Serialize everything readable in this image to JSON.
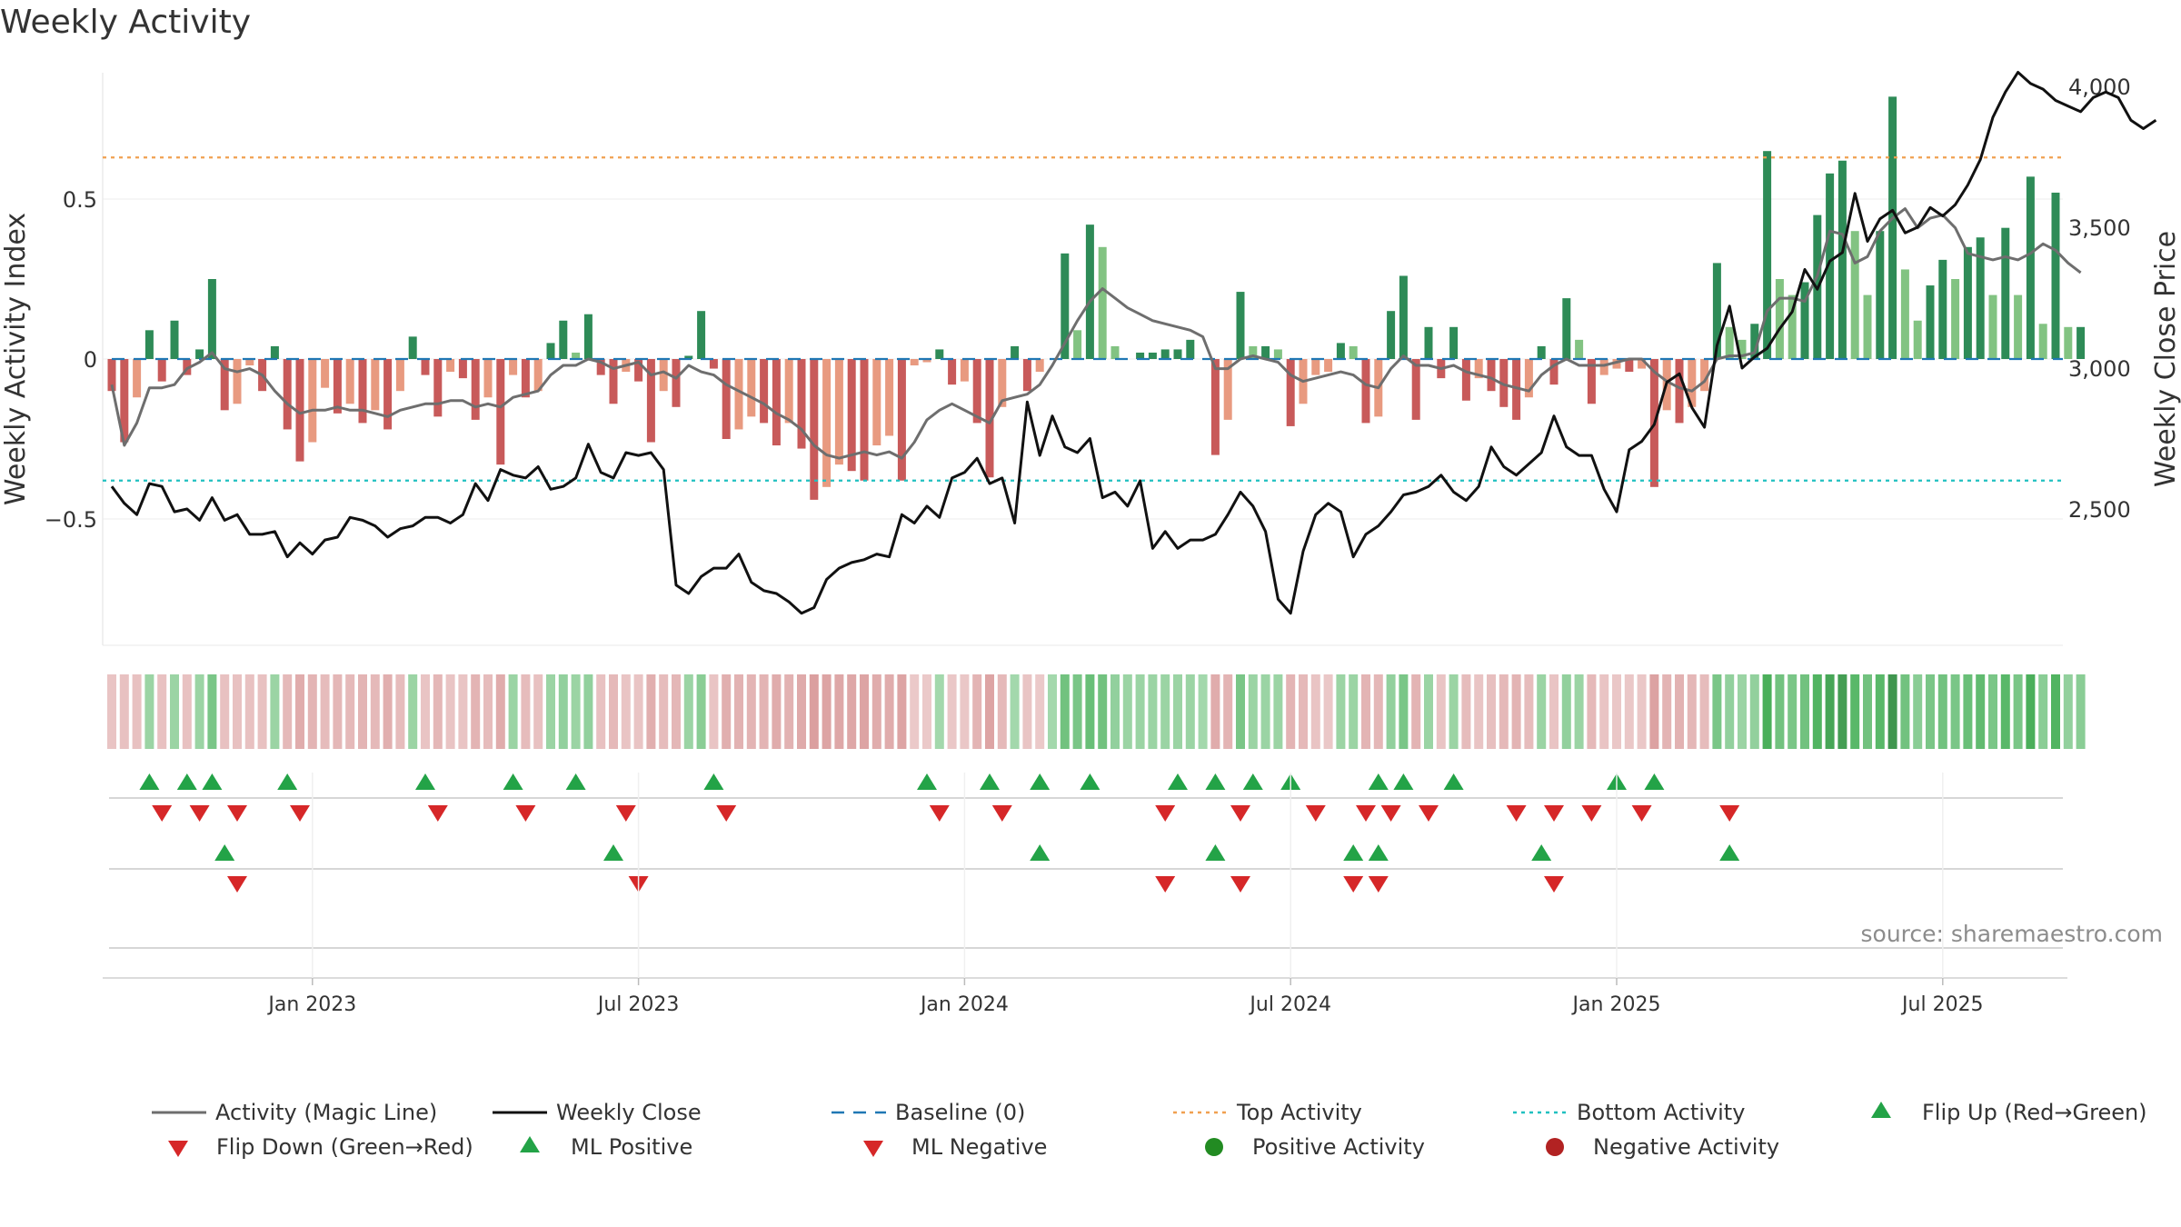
{
  "title": "Weekly Activity",
  "source": "source: sharemaestro.com",
  "colors": {
    "strong_green": "#2e8b57",
    "light_green": "#82c382",
    "strong_red": "#c85a5a",
    "light_red": "#e89a80",
    "magic": "#6e6e6e",
    "close": "#111111",
    "baseline": "#1f77b4",
    "top": "#f0a050",
    "bottom": "#20c0c0",
    "tri_up": "#23a347",
    "tri_down": "#d62728",
    "pos": "#228b22",
    "neg": "#b22222"
  },
  "chart_data": {
    "type": "bar",
    "title": "Weekly Activity",
    "ylabel": "Weekly Activity Index",
    "y2label": "Weekly Close Price",
    "ylim": [
      -0.9,
      0.9
    ],
    "y2lim": [
      2000,
      4100
    ],
    "yticks": [
      0.5,
      0,
      -0.5
    ],
    "ytick_labels": [
      "0.5",
      "0",
      "−0.5"
    ],
    "y2ticks": [
      4000,
      3500,
      3000,
      2500
    ],
    "y2tick_labels": [
      "4,000",
      "3,500",
      "3,000",
      "2,500"
    ],
    "top_activity": 0.63,
    "bottom_activity": -0.38,
    "baseline": 0,
    "x_ticks": [
      {
        "week": 16,
        "label": "Jan 2023"
      },
      {
        "week": 42,
        "label": "Jul 2023"
      },
      {
        "week": 68,
        "label": "Jan 2024"
      },
      {
        "week": 94,
        "label": "Jul 2024"
      },
      {
        "week": 120,
        "label": "Jan 2025"
      },
      {
        "week": 146,
        "label": "Jul 2025"
      }
    ],
    "activity": [
      -0.1,
      -0.26,
      -0.12,
      0.09,
      -0.07,
      0.12,
      -0.05,
      0.03,
      0.25,
      -0.16,
      -0.14,
      -0.02,
      -0.1,
      0.04,
      -0.22,
      -0.32,
      -0.26,
      -0.09,
      -0.17,
      -0.14,
      -0.2,
      -0.16,
      -0.22,
      -0.1,
      0.07,
      -0.05,
      -0.18,
      -0.04,
      -0.06,
      -0.19,
      -0.12,
      -0.33,
      -0.05,
      -0.12,
      -0.1,
      0.05,
      0.12,
      0.02,
      0.14,
      -0.05,
      -0.14,
      -0.04,
      -0.07,
      -0.26,
      -0.1,
      -0.15,
      0.01,
      0.15,
      -0.03,
      -0.25,
      -0.22,
      -0.18,
      -0.2,
      -0.27,
      -0.2,
      -0.28,
      -0.44,
      -0.4,
      -0.33,
      -0.35,
      -0.38,
      -0.27,
      -0.24,
      -0.38,
      -0.02,
      -0.01,
      0.03,
      -0.08,
      -0.07,
      -0.2,
      -0.37,
      -0.15,
      0.04,
      -0.1,
      -0.04,
      0.0,
      0.33,
      0.09,
      0.42,
      0.35,
      0.04,
      0.0,
      0.02,
      0.02,
      0.03,
      0.03,
      0.06,
      0.0,
      -0.3,
      -0.19,
      0.21,
      0.04,
      0.04,
      0.03,
      -0.21,
      -0.14,
      -0.05,
      -0.04,
      0.05,
      0.04,
      -0.2,
      -0.18,
      0.15,
      0.26,
      -0.19,
      0.1,
      -0.06,
      0.1,
      -0.13,
      -0.06,
      -0.1,
      -0.15,
      -0.19,
      -0.12,
      0.04,
      -0.08,
      0.19,
      0.06,
      -0.14,
      -0.05,
      -0.03,
      -0.04,
      -0.03,
      -0.4,
      -0.16,
      -0.2,
      -0.15,
      -0.1,
      0.3,
      0.1,
      0.06,
      0.11,
      0.65,
      0.25,
      0.2,
      0.24,
      0.45,
      0.58,
      0.62,
      0.4,
      0.2,
      0.4,
      0.82,
      0.28,
      0.12,
      0.23,
      0.31,
      0.25,
      0.35,
      0.38,
      0.2,
      0.41,
      0.2,
      0.57,
      0.11,
      0.52,
      0.1,
      0.1
    ],
    "magic": [
      -0.08,
      -0.27,
      -0.2,
      -0.09,
      -0.09,
      -0.08,
      -0.03,
      -0.01,
      0.02,
      -0.03,
      -0.04,
      -0.03,
      -0.05,
      -0.1,
      -0.14,
      -0.17,
      -0.16,
      -0.16,
      -0.15,
      -0.16,
      -0.16,
      -0.17,
      -0.18,
      -0.16,
      -0.15,
      -0.14,
      -0.14,
      -0.13,
      -0.13,
      -0.15,
      -0.14,
      -0.15,
      -0.12,
      -0.11,
      -0.1,
      -0.05,
      -0.02,
      -0.02,
      0.0,
      -0.01,
      -0.03,
      -0.02,
      -0.01,
      -0.05,
      -0.04,
      -0.06,
      -0.02,
      -0.04,
      -0.05,
      -0.08,
      -0.1,
      -0.12,
      -0.14,
      -0.17,
      -0.19,
      -0.22,
      -0.27,
      -0.3,
      -0.31,
      -0.3,
      -0.29,
      -0.3,
      -0.29,
      -0.31,
      -0.26,
      -0.19,
      -0.16,
      -0.14,
      -0.16,
      -0.18,
      -0.2,
      -0.13,
      -0.12,
      -0.11,
      -0.08,
      -0.02,
      0.05,
      0.12,
      0.18,
      0.22,
      0.19,
      0.16,
      0.14,
      0.12,
      0.11,
      0.1,
      0.09,
      0.07,
      -0.03,
      -0.03,
      0.0,
      0.01,
      0.0,
      -0.01,
      -0.05,
      -0.07,
      -0.06,
      -0.05,
      -0.04,
      -0.05,
      -0.08,
      -0.09,
      -0.03,
      0.01,
      -0.02,
      -0.02,
      -0.03,
      -0.02,
      -0.04,
      -0.05,
      -0.06,
      -0.08,
      -0.09,
      -0.1,
      -0.05,
      -0.02,
      0.0,
      -0.02,
      -0.02,
      -0.02,
      -0.01,
      0.0,
      0.0,
      -0.04,
      -0.07,
      -0.09,
      -0.1,
      -0.07,
      0.0,
      0.01,
      0.01,
      0.02,
      0.15,
      0.19,
      0.19,
      0.18,
      0.26,
      0.4,
      0.39,
      0.3,
      0.32,
      0.4,
      0.44,
      0.47,
      0.41,
      0.44,
      0.45,
      0.41,
      0.33,
      0.32,
      0.31,
      0.32,
      0.31,
      0.33,
      0.36,
      0.34,
      0.3,
      0.27
    ],
    "close": [
      2580,
      2520,
      2480,
      2590,
      2580,
      2490,
      2500,
      2460,
      2540,
      2460,
      2480,
      2410,
      2410,
      2420,
      2330,
      2380,
      2340,
      2390,
      2400,
      2470,
      2460,
      2440,
      2400,
      2430,
      2440,
      2470,
      2470,
      2450,
      2480,
      2590,
      2530,
      2640,
      2620,
      2610,
      2650,
      2570,
      2580,
      2610,
      2730,
      2630,
      2610,
      2700,
      2690,
      2700,
      2640,
      2230,
      2200,
      2260,
      2290,
      2290,
      2340,
      2240,
      2210,
      2200,
      2170,
      2130,
      2150,
      2250,
      2290,
      2310,
      2320,
      2340,
      2330,
      2480,
      2450,
      2510,
      2470,
      2610,
      2630,
      2680,
      2590,
      2610,
      2450,
      2880,
      2690,
      2830,
      2720,
      2700,
      2750,
      2540,
      2560,
      2510,
      2600,
      2360,
      2420,
      2360,
      2390,
      2390,
      2410,
      2480,
      2560,
      2510,
      2420,
      2180,
      2130,
      2350,
      2480,
      2520,
      2490,
      2330,
      2410,
      2440,
      2490,
      2550,
      2560,
      2580,
      2620,
      2560,
      2530,
      2580,
      2720,
      2650,
      2620,
      2660,
      2700,
      2830,
      2720,
      2690,
      2690,
      2570,
      2490,
      2710,
      2740,
      2800,
      2950,
      2980,
      2860,
      2790,
      3080,
      3220,
      3000,
      3040,
      3070,
      3140,
      3200,
      3350,
      3280,
      3380,
      3410,
      3620,
      3450,
      3530,
      3560,
      3480,
      3500,
      3570,
      3540,
      3580,
      3650,
      3740,
      3890,
      3980,
      4050,
      4010,
      3990,
      3950,
      3930,
      3910,
      3960,
      3980,
      3960,
      3880,
      3850,
      3880
    ]
  },
  "heatmap": [
    -0.22,
    -0.24,
    -0.24,
    0.35,
    -0.24,
    0.35,
    -0.24,
    0.35,
    0.55,
    -0.24,
    -0.24,
    -0.24,
    -0.24,
    0.35,
    -0.3,
    -0.4,
    -0.34,
    -0.28,
    -0.32,
    -0.3,
    -0.34,
    -0.3,
    -0.38,
    -0.28,
    0.35,
    -0.22,
    -0.32,
    -0.22,
    -0.22,
    -0.34,
    -0.28,
    -0.4,
    0.35,
    -0.28,
    -0.24,
    0.35,
    0.4,
    0.35,
    0.4,
    -0.24,
    -0.3,
    -0.22,
    -0.22,
    -0.38,
    -0.28,
    -0.32,
    0.35,
    0.45,
    -0.22,
    -0.38,
    -0.36,
    -0.34,
    -0.34,
    -0.4,
    -0.36,
    -0.42,
    -0.5,
    -0.46,
    -0.44,
    -0.44,
    -0.46,
    -0.4,
    -0.4,
    -0.46,
    -0.18,
    -0.18,
    0.3,
    -0.2,
    -0.2,
    -0.34,
    -0.46,
    -0.3,
    0.3,
    -0.22,
    -0.18,
    0.3,
    0.6,
    0.55,
    0.65,
    0.6,
    0.4,
    0.35,
    0.35,
    0.35,
    0.35,
    0.35,
    0.35,
    0.3,
    -0.4,
    -0.34,
    0.55,
    0.35,
    0.35,
    0.35,
    -0.34,
    -0.3,
    -0.22,
    -0.2,
    0.35,
    0.35,
    -0.34,
    -0.32,
    0.4,
    0.55,
    -0.34,
    0.35,
    -0.22,
    0.35,
    -0.28,
    -0.22,
    -0.26,
    -0.3,
    -0.34,
    -0.28,
    0.35,
    -0.22,
    0.4,
    0.35,
    -0.3,
    -0.22,
    -0.2,
    -0.2,
    -0.2,
    -0.48,
    -0.34,
    -0.36,
    -0.32,
    -0.28,
    0.55,
    0.4,
    0.35,
    0.4,
    0.85,
    0.6,
    0.55,
    0.6,
    0.8,
    0.9,
    0.95,
    0.75,
    0.6,
    0.75,
    1.0,
    0.6,
    0.45,
    0.55,
    0.6,
    0.55,
    0.65,
    0.7,
    0.55,
    0.75,
    0.55,
    0.85,
    0.45,
    0.8,
    0.4,
    0.45
  ],
  "markers": {
    "flip_up": [
      3,
      6,
      8,
      14,
      25,
      32,
      37,
      48,
      65,
      70,
      74,
      78,
      85,
      88,
      91,
      94,
      101,
      103,
      107,
      120,
      123
    ],
    "flip_down": [
      4,
      7,
      10,
      15,
      26,
      33,
      41,
      49,
      66,
      71,
      84,
      90,
      96,
      100,
      102,
      105,
      112,
      115,
      118,
      122,
      129
    ],
    "ml_positive": [
      9,
      40,
      74,
      88,
      99,
      101,
      114,
      129
    ],
    "ml_negative": [
      10,
      42,
      84,
      90,
      99,
      101,
      115
    ]
  },
  "legend": [
    {
      "label": "Activity (Magic Line)",
      "symbol": "magic"
    },
    {
      "label": "Weekly Close",
      "symbol": "close"
    },
    {
      "label": "Baseline (0)",
      "symbol": "baseline"
    },
    {
      "label": "Top Activity",
      "symbol": "top"
    },
    {
      "label": "Bottom Activity",
      "symbol": "bottom"
    },
    {
      "label": "Flip Up (Red→Green)",
      "symbol": "flip_up"
    },
    {
      "label": "Flip Down (Green→Red)",
      "symbol": "flip_down"
    },
    {
      "label": "ML Positive",
      "symbol": "ml_positive"
    },
    {
      "label": "ML Negative",
      "symbol": "ml_negative"
    },
    {
      "label": "Positive Activity",
      "symbol": "pos"
    },
    {
      "label": "Negative Activity",
      "symbol": "neg"
    }
  ]
}
